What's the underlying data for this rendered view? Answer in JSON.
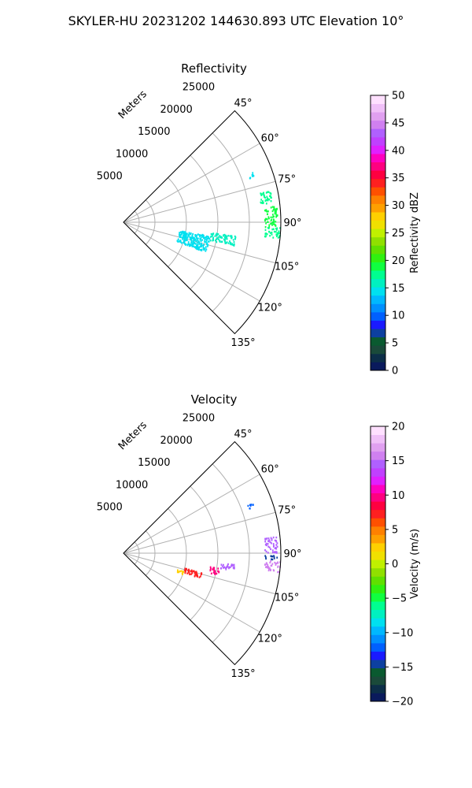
{
  "figure": {
    "suptitle": "SKYLER-HU  20231202  144630.893 UTC Elevation 10°"
  },
  "chart_data": [
    {
      "type": "heatmap",
      "title": "Reflectivity",
      "projection": "polar",
      "azimuth_labels": [
        "45°",
        "60°",
        "75°",
        "90°",
        "105°",
        "120°",
        "135°"
      ],
      "range_axis_label": "Meters",
      "range_ticks": [
        5000,
        10000,
        15000,
        20000,
        25000
      ],
      "range_tick_labels": [
        "5000",
        "10000",
        "15000",
        "20000",
        "25000"
      ],
      "rmax": 25000,
      "grid": true,
      "colorbar": {
        "label": "Reflectivity dBZ",
        "vmin": 0,
        "vmax": 50,
        "ticks": [
          0,
          5,
          10,
          15,
          20,
          25,
          30,
          35,
          40,
          45,
          50
        ],
        "tick_labels": [
          "0",
          "5",
          "10",
          "15",
          "20",
          "25",
          "30",
          "35",
          "40",
          "45",
          "50"
        ]
      },
      "echo_regions": [
        {
          "az_min": 99,
          "az_max": 110,
          "r_min": 9000,
          "r_max": 14000,
          "value": 15
        },
        {
          "az_min": 97,
          "az_max": 102,
          "r_min": 14000,
          "r_max": 18000,
          "value": 16
        },
        {
          "az_min": 84,
          "az_max": 92,
          "r_min": 22500,
          "r_max": 24500,
          "value": 19
        },
        {
          "az_min": 92,
          "az_max": 96,
          "r_min": 22500,
          "r_max": 25000,
          "value": 18
        },
        {
          "az_min": 78,
          "az_max": 83,
          "r_min": 22000,
          "r_max": 24000,
          "value": 17
        },
        {
          "az_min": 69,
          "az_max": 71,
          "r_min": 21000,
          "r_max": 22000,
          "value": 14
        }
      ]
    },
    {
      "type": "heatmap",
      "title": "Velocity",
      "projection": "polar",
      "azimuth_labels": [
        "45°",
        "60°",
        "75°",
        "90°",
        "105°",
        "120°",
        "135°"
      ],
      "range_axis_label": "Meters",
      "range_ticks": [
        5000,
        10000,
        15000,
        20000,
        25000
      ],
      "range_tick_labels": [
        "5000",
        "10000",
        "15000",
        "20000",
        "25000"
      ],
      "rmax": 25000,
      "grid": true,
      "colorbar": {
        "label": "Velocity (m/s)",
        "vmin": -20,
        "vmax": 20,
        "ticks": [
          -20,
          -15,
          -10,
          -5,
          0,
          5,
          10,
          15,
          20
        ],
        "tick_labels": [
          "−20",
          "−15",
          "−10",
          "−5",
          "0",
          "5",
          "10",
          "15",
          "20"
        ]
      },
      "echo_regions": [
        {
          "az_min": 107,
          "az_max": 110,
          "r_min": 9000,
          "r_max": 10000,
          "value": 2
        },
        {
          "az_min": 104,
          "az_max": 108,
          "r_min": 10000,
          "r_max": 13000,
          "value": 7
        },
        {
          "az_min": 99,
          "az_max": 103,
          "r_min": 14000,
          "r_max": 15500,
          "value": 10
        },
        {
          "az_min": 96,
          "az_max": 99,
          "r_min": 15500,
          "r_max": 18000,
          "value": 14
        },
        {
          "az_min": 84,
          "az_max": 90,
          "r_min": 22500,
          "r_max": 24500,
          "value": 15
        },
        {
          "az_min": 91,
          "az_max": 92.5,
          "r_min": 22500,
          "r_max": 24500,
          "value": -15
        },
        {
          "az_min": 93,
          "az_max": 97,
          "r_min": 22500,
          "r_max": 25000,
          "value": 16
        },
        {
          "az_min": 69,
          "az_max": 71,
          "r_min": 21000,
          "r_max": 22000,
          "value": -12
        }
      ]
    }
  ],
  "colors": {
    "grid": "#b0b0b0",
    "frame": "#000000",
    "cmap": [
      "#0a1a5c",
      "#0c2e48",
      "#1a4a3a",
      "#0a5a30",
      "#0d40a0",
      "#1a1aff",
      "#0060ff",
      "#0090ff",
      "#00b8ff",
      "#00e0f0",
      "#00f0c0",
      "#00ff90",
      "#10ff40",
      "#30f010",
      "#60e000",
      "#90e000",
      "#c0f000",
      "#f0e000",
      "#ffd000",
      "#ffa000",
      "#ff8000",
      "#ff5000",
      "#ff2020",
      "#ff0040",
      "#ff0080",
      "#ff00c0",
      "#e020ff",
      "#c040ff",
      "#b060ff",
      "#d080f0",
      "#e0a0f0",
      "#f0c0f8",
      "#ffe0ff"
    ]
  }
}
